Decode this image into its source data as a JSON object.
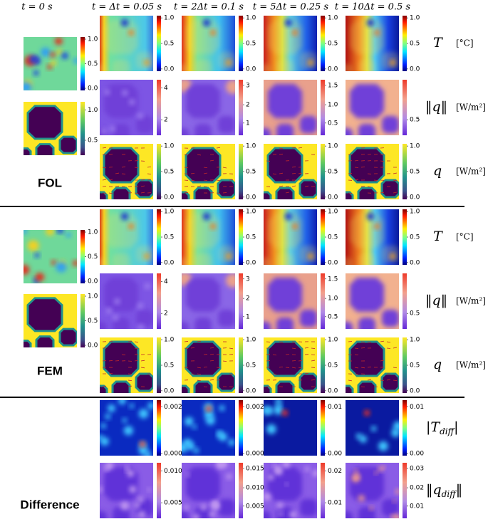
{
  "column_headers": [
    "t = 0 s",
    "t = Δt = 0.05 s",
    "t = 2Δt = 0.1 s",
    "t = 5Δt = 0.25 s",
    "t = 10Δt = 0.5 s"
  ],
  "sections": [
    {
      "label": "FOL",
      "initial": [
        {
          "style": "temperature",
          "ticks": [
            "1.0",
            "0.5",
            "0.0"
          ]
        },
        {
          "style": "mask",
          "ticks": [
            "1.0",
            "0.5"
          ]
        }
      ],
      "rows": [
        {
          "style": "temperature",
          "symbol": "T",
          "unit": "[°C]",
          "panels": [
            {
              "ticks": [
                "1.0",
                "0.5",
                "0.0"
              ]
            },
            {
              "ticks": [
                "1.0",
                "0.5",
                "0.0"
              ]
            },
            {
              "ticks": [
                "1.0",
                "0.5",
                "0.0"
              ]
            },
            {
              "ticks": [
                "1.0",
                "0.5",
                "0.0"
              ]
            }
          ]
        },
        {
          "style": "flux-magnitude",
          "symbol": "‖q‖",
          "unit": "[W/m²]",
          "panels": [
            {
              "ticks": [
                "4",
                "2"
              ]
            },
            {
              "ticks": [
                "3",
                "2",
                "1"
              ]
            },
            {
              "ticks": [
                "1.5",
                "1.0",
                "0.5"
              ]
            },
            {
              "ticks": [
                "0.5"
              ]
            }
          ]
        },
        {
          "style": "flux-vector",
          "symbol": "q",
          "unit": "[W/m²]",
          "panels": [
            {
              "ticks": [
                "1.0",
                "0.5",
                "0.0"
              ]
            },
            {
              "ticks": [
                "1.0",
                "0.5",
                "0.0"
              ]
            },
            {
              "ticks": [
                "1.0",
                "0.5",
                "0.0"
              ]
            },
            {
              "ticks": [
                "1.0",
                "0.5",
                "0.0"
              ]
            }
          ]
        }
      ]
    },
    {
      "label": "FEM",
      "initial": [
        {
          "style": "temperature",
          "ticks": [
            "1.0",
            "0.5",
            "0.0"
          ]
        },
        {
          "style": "mask",
          "ticks": [
            "1.0",
            "0.5",
            "0.0"
          ]
        }
      ],
      "rows": [
        {
          "style": "temperature",
          "symbol": "T",
          "unit": "[°C]",
          "panels": [
            {
              "ticks": [
                "1.0",
                "0.5",
                "0.0"
              ]
            },
            {
              "ticks": [
                "1.0",
                "0.5",
                "0.0"
              ]
            },
            {
              "ticks": [
                "1.0",
                "0.5",
                "0.0"
              ]
            },
            {
              "ticks": [
                "1.0",
                "0.5",
                "0.0"
              ]
            }
          ]
        },
        {
          "style": "flux-magnitude",
          "symbol": "‖q‖",
          "unit": "[W/m²]",
          "panels": [
            {
              "ticks": [
                "4",
                "2"
              ]
            },
            {
              "ticks": [
                "3",
                "2",
                "1"
              ]
            },
            {
              "ticks": [
                "1.5",
                "1.0",
                "0.5"
              ]
            },
            {
              "ticks": [
                "0.5"
              ]
            }
          ]
        },
        {
          "style": "flux-vector",
          "symbol": "q",
          "unit": "[W/m²]",
          "panels": [
            {
              "ticks": [
                "1.0",
                "0.5",
                "0.0"
              ]
            },
            {
              "ticks": [
                "1.0",
                "0.5",
                "0.0"
              ]
            },
            {
              "ticks": [
                "1.0",
                "0.5",
                "0.0"
              ]
            },
            {
              "ticks": [
                "1.0",
                "0.5",
                "0.0"
              ]
            }
          ]
        }
      ]
    },
    {
      "label": "Difference",
      "rows": [
        {
          "style": "difference-T",
          "symbol": "|T",
          "subscript": "diff",
          "close": "|",
          "panels": [
            {
              "ticks": [
                "0.002",
                "0.000"
              ]
            },
            {
              "ticks": [
                "0.002",
                "0.000"
              ]
            },
            {
              "ticks": [
                "0.01",
                "0.00"
              ]
            },
            {
              "ticks": [
                "0.01",
                "0.00"
              ]
            }
          ]
        },
        {
          "style": "difference-q",
          "symbol": "‖q",
          "subscript": "diff",
          "close": "‖",
          "panels": [
            {
              "ticks": [
                "0.010",
                "0.005"
              ]
            },
            {
              "ticks": [
                "0.015",
                "0.010",
                "0.005"
              ]
            },
            {
              "ticks": [
                "0.02",
                "0.01"
              ]
            },
            {
              "ticks": [
                "0.03",
                "0.02",
                "0.01"
              ]
            }
          ]
        }
      ]
    }
  ]
}
